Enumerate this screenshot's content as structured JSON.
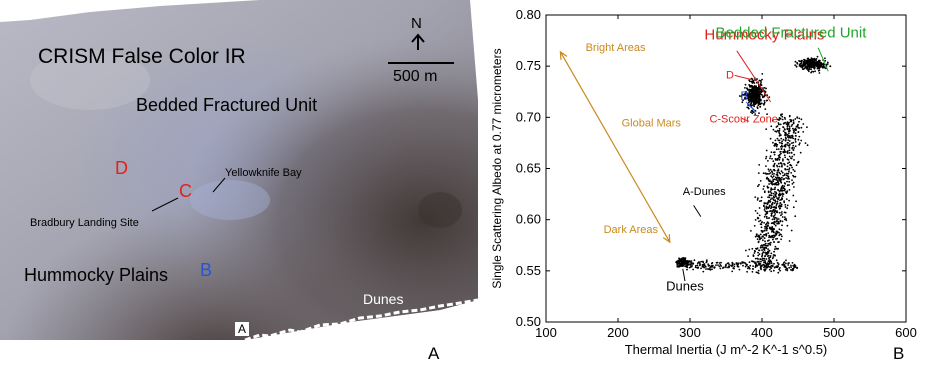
{
  "panel_a": {
    "title": "CRISM False Color IR",
    "north_label": "N",
    "scale_label": "500 m",
    "labels": {
      "bedded": "Bedded Fractured Unit",
      "yellowknife": "Yellowknife Bay",
      "d": "D",
      "c": "C",
      "bradbury": "Bradbury Landing Site",
      "hummocky": "Hummocky Plains",
      "b": "B",
      "dunes": "Dunes",
      "a_box": "A"
    },
    "panel_letter": "A"
  },
  "panel_b": {
    "panel_letter": "B",
    "chart_data": {
      "type": "scatter",
      "xlabel": "Thermal Inertia (J m^-2 K^-1 s^0.5)",
      "ylabel": "Single Scattering Albedo at 0.77 micrometers",
      "xlim": [
        100,
        600
      ],
      "ylim": [
        0.5,
        0.8
      ],
      "xticks": [
        100,
        200,
        300,
        400,
        500,
        600
      ],
      "yticks": [
        0.5,
        0.55,
        0.6,
        0.65,
        0.7,
        0.75,
        0.8
      ],
      "xtick_labels": [
        "100",
        "200",
        "300",
        "400",
        "500",
        "600"
      ],
      "ytick_labels": [
        "0.50",
        "0.55",
        "0.60",
        "0.65",
        "0.70",
        "0.75",
        "0.80"
      ],
      "point_color": "#000000",
      "clusters": [
        {
          "x": 290,
          "y": 0.558
        },
        {
          "x": 390,
          "y": 0.722
        },
        {
          "x": 470,
          "y": 0.752
        },
        {
          "x": 430,
          "y": 0.64
        }
      ],
      "annotations": {
        "hummocky": {
          "text": "Hummocky Plains",
          "color": "#e0211c",
          "x": 320,
          "y": 0.776
        },
        "bedded": {
          "text": "Bedded Fractured Unit",
          "color": "#22a52a",
          "x": 545,
          "y": 0.778
        },
        "bright": {
          "text": "Bright Areas",
          "color": "#c98a1e",
          "x": 155,
          "y": 0.765
        },
        "d": {
          "text": "D",
          "color": "#e0211c",
          "x": 350,
          "y": 0.738
        },
        "b": {
          "text": "B",
          "color": "#2754d8",
          "x": 370,
          "y": 0.717
        },
        "cscour": {
          "text": "C-Scour Zone",
          "color": "#e0211c",
          "x": 327,
          "y": 0.695
        },
        "global": {
          "text": "Global Mars",
          "color": "#c98a1e",
          "x": 205,
          "y": 0.691
        },
        "adunes": {
          "text": "A-Dunes",
          "color": "#000000",
          "x": 290,
          "y": 0.624
        },
        "dark": {
          "text": "Dark Areas",
          "color": "#c98a1e",
          "x": 180,
          "y": 0.587
        },
        "dunes": {
          "text": "Dunes",
          "color": "#000000",
          "x": 293,
          "y": 0.531
        }
      },
      "arrow": {
        "color": "#c98a1e",
        "x1": 120,
        "y1": 0.764,
        "x2": 272,
        "y2": 0.578
      }
    }
  }
}
